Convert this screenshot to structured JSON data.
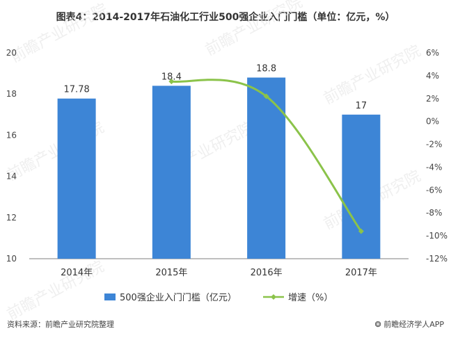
{
  "title": "图表4：2014-2017年石油化工行业500强企业入门门槛（单位：亿元，%）",
  "source_text": "资料来源：前瞻产业研究院整理",
  "brand": {
    "mark": "❂",
    "text": "前瞻经济学人APP"
  },
  "watermark": "前瞻产业研究院",
  "chart_data": {
    "type": "bar",
    "categories": [
      "2014年",
      "2015年",
      "2016年",
      "2017年"
    ],
    "series": [
      {
        "name": "500强企业入门门槛（亿元）",
        "type": "bar",
        "axis": "left",
        "values": [
          17.78,
          18.4,
          18.8,
          17
        ],
        "labels": [
          "17.78",
          "18.4",
          "18.8",
          "17"
        ],
        "color": "#3d85d6"
      },
      {
        "name": "增速（%）",
        "type": "line",
        "axis": "right",
        "values": [
          null,
          3.5,
          2.2,
          -9.6
        ],
        "color": "#8bc34a"
      }
    ],
    "y_left": {
      "min": 10,
      "max": 20,
      "ticks": [
        "10",
        "12",
        "14",
        "16",
        "18",
        "20"
      ]
    },
    "y_right": {
      "min": -12,
      "max": 6,
      "ticks": [
        "-12%",
        "-10%",
        "-8%",
        "-6%",
        "-4%",
        "-2%",
        "0%",
        "2%",
        "4%",
        "6%"
      ]
    },
    "legend_position": "bottom",
    "grid": false
  }
}
